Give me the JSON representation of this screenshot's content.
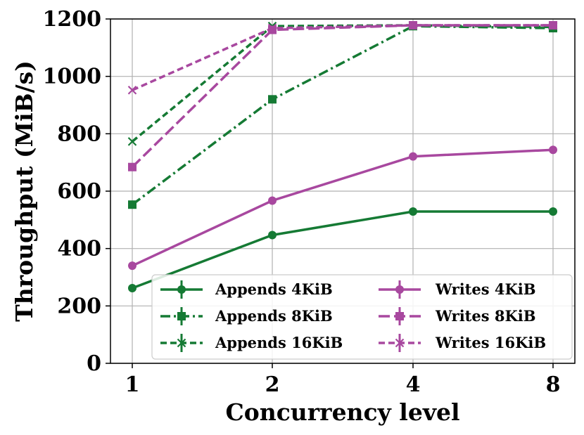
{
  "chart_data": {
    "type": "line",
    "title": "",
    "xlabel": "Concurrency level",
    "ylabel": "Throughput (MiB/s)",
    "x": [
      "1",
      "2",
      "4",
      "8"
    ],
    "ylim": [
      0,
      1200
    ],
    "yticks": [
      0,
      200,
      400,
      600,
      800,
      1000,
      1200
    ],
    "grid": true,
    "legend_position": "lower-right",
    "series": [
      {
        "name": "Appends 4KiB",
        "values": [
          262,
          447,
          529,
          529
        ],
        "color": "#157a34",
        "dash": "solid",
        "marker": "circle"
      },
      {
        "name": "Appends 8KiB",
        "values": [
          553,
          920,
          1175,
          1168
        ],
        "color": "#157a34",
        "dash": "dashdot",
        "marker": "square"
      },
      {
        "name": "Appends 16KiB",
        "values": [
          773,
          1175,
          1178,
          1172
        ],
        "color": "#157a34",
        "dash": "dashed",
        "marker": "x"
      },
      {
        "name": "Writes 4KiB",
        "values": [
          340,
          567,
          721,
          744
        ],
        "color": "#a8489f",
        "dash": "solid",
        "marker": "circle"
      },
      {
        "name": "Writes 8KiB",
        "values": [
          684,
          1162,
          1178,
          1178
        ],
        "color": "#a8489f",
        "dash": "longdash",
        "marker": "square"
      },
      {
        "name": "Writes 16KiB",
        "values": [
          952,
          1168,
          1178,
          1178
        ],
        "color": "#a8489f",
        "dash": "dashed",
        "marker": "x"
      }
    ]
  }
}
